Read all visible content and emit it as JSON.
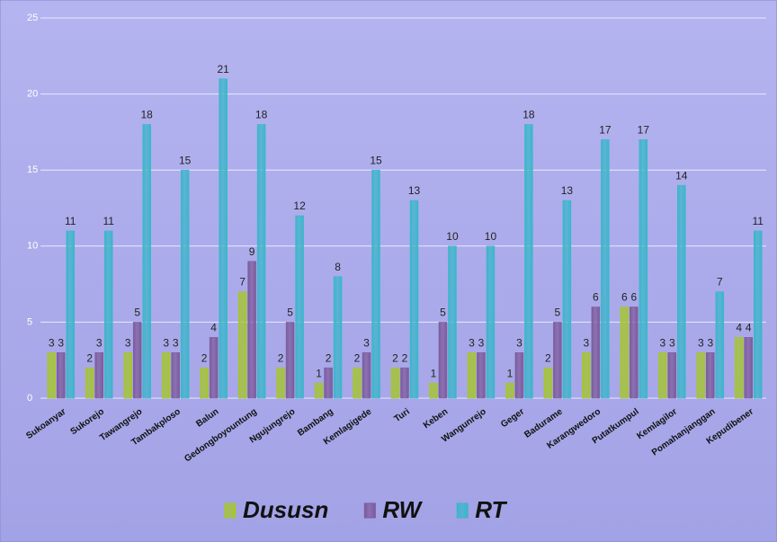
{
  "chart_data": {
    "type": "bar",
    "categories": [
      "Sukoanyar",
      "Sukorejo",
      "Tawangrejo",
      "Tambakploso",
      "Balun",
      "Gedongboyountung",
      "Ngujungrejo",
      "Bambang",
      "Kemlagigede",
      "Turi",
      "Keben",
      "Wangunrejo",
      "Geger",
      "Badurame",
      "Karangwedoro",
      "Putatkumpul",
      "Kemlagilor",
      "Pomahanjanggan",
      "Kepudibener"
    ],
    "series": [
      {
        "name": "Dususn",
        "color": "#a6c62c",
        "values": [
          3,
          2,
          3,
          3,
          2,
          7,
          2,
          1,
          2,
          2,
          1,
          3,
          1,
          2,
          3,
          6,
          3,
          3,
          4
        ]
      },
      {
        "name": "RW",
        "color": "#7d5b9c",
        "values": [
          3,
          3,
          5,
          3,
          4,
          9,
          5,
          2,
          3,
          2,
          5,
          3,
          3,
          5,
          6,
          6,
          3,
          3,
          4
        ]
      },
      {
        "name": "RT",
        "color": "#3bb6ca",
        "values": [
          11,
          11,
          18,
          15,
          21,
          18,
          12,
          8,
          15,
          13,
          10,
          10,
          18,
          13,
          17,
          17,
          14,
          7,
          11
        ]
      }
    ],
    "ylim": [
      0,
      25
    ],
    "yticks": [
      0,
      5,
      10,
      15,
      20,
      25
    ],
    "grid": true,
    "legend": "bottom"
  }
}
